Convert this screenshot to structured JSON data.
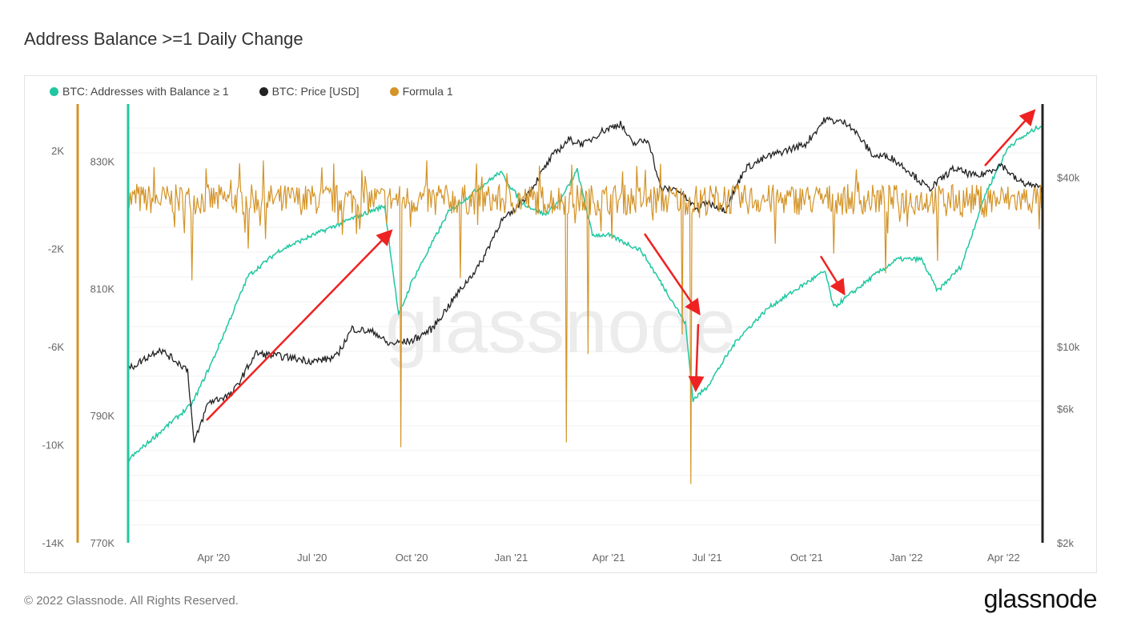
{
  "title": "Address Balance >=1 Daily Change",
  "footer": "© 2022 Glassnode. All Rights Reserved.",
  "logo": "glassnode",
  "watermark": "glassnode",
  "colors": {
    "addresses": "#1fc7a0",
    "price": "#222222",
    "formula": "#d49428",
    "annotation": "#ee2222"
  },
  "chart_data": {
    "type": "line",
    "title": "Address Balance >=1 Daily Change",
    "legend": [
      "BTC: Addresses with Balance ≥ 1",
      "BTC: Price [USD]",
      "Formula 1"
    ],
    "legend_position": "top-left",
    "x_range": [
      "2020-01-13",
      "2022-05-07"
    ],
    "x_ticks": [
      {
        "date": "2020-04-01",
        "label": "Apr '20"
      },
      {
        "date": "2020-07-01",
        "label": "Jul '20"
      },
      {
        "date": "2020-10-01",
        "label": "Oct '20"
      },
      {
        "date": "2021-01-01",
        "label": "Jan '21"
      },
      {
        "date": "2021-04-01",
        "label": "Apr '21"
      },
      {
        "date": "2021-07-01",
        "label": "Jul '21"
      },
      {
        "date": "2021-10-01",
        "label": "Oct '21"
      },
      {
        "date": "2022-01-01",
        "label": "Jan '22"
      },
      {
        "date": "2022-04-01",
        "label": "Apr '22"
      }
    ],
    "axes": {
      "formula": {
        "range": [
          -14000,
          3900
        ],
        "ticks": [
          {
            "v": 2000,
            "label": "2K"
          },
          {
            "v": -2000,
            "label": "-2K"
          },
          {
            "v": -6000,
            "label": "-6K"
          },
          {
            "v": -10000,
            "label": "-10K"
          },
          {
            "v": -14000,
            "label": "-14K"
          }
        ]
      },
      "addresses": {
        "range": [
          770000,
          839000
        ],
        "ticks": [
          {
            "v": 830000,
            "label": "830K"
          },
          {
            "v": 810000,
            "label": "810K"
          },
          {
            "v": 790000,
            "label": "790K"
          },
          {
            "v": 770000,
            "label": "770K"
          }
        ]
      },
      "price": {
        "scale": "log",
        "range": [
          2000,
          73000
        ],
        "ticks": [
          {
            "v": 40000,
            "label": "$40k"
          },
          {
            "v": 10000,
            "label": "$10k"
          },
          {
            "v": 6000,
            "label": "$6k"
          },
          {
            "v": 2000,
            "label": "$2k"
          }
        ]
      }
    },
    "grid": true,
    "series": [
      {
        "name": "BTC: Addresses with Balance ≥ 1",
        "axis": "addresses",
        "points": [
          [
            "2020-01-13",
            783000
          ],
          [
            "2020-03-12",
            791800
          ],
          [
            "2020-04-01",
            799000
          ],
          [
            "2020-05-03",
            812000
          ],
          [
            "2020-06-01",
            816000
          ],
          [
            "2020-07-02",
            818400
          ],
          [
            "2020-08-07",
            821000
          ],
          [
            "2020-09-06",
            823000
          ],
          [
            "2020-09-19",
            805700
          ],
          [
            "2020-10-01",
            811000
          ],
          [
            "2020-11-04",
            822000
          ],
          [
            "2020-12-04",
            826000
          ],
          [
            "2020-12-22",
            828300
          ],
          [
            "2021-01-11",
            823500
          ],
          [
            "2021-02-01",
            821600
          ],
          [
            "2021-02-16",
            824000
          ],
          [
            "2021-03-03",
            828600
          ],
          [
            "2021-03-17",
            818400
          ],
          [
            "2021-04-01",
            818400
          ],
          [
            "2021-05-01",
            816000
          ],
          [
            "2021-05-30",
            808000
          ],
          [
            "2021-06-11",
            804500
          ],
          [
            "2021-06-18",
            792500
          ],
          [
            "2021-06-30",
            794300
          ],
          [
            "2021-07-29",
            802000
          ],
          [
            "2021-08-27",
            807000
          ],
          [
            "2021-09-30",
            810800
          ],
          [
            "2021-10-18",
            812700
          ],
          [
            "2021-10-26",
            807000
          ],
          [
            "2021-12-02",
            812000
          ],
          [
            "2021-12-24",
            814600
          ],
          [
            "2022-01-15",
            814600
          ],
          [
            "2022-01-30",
            809600
          ],
          [
            "2022-02-21",
            813500
          ],
          [
            "2022-03-15",
            824800
          ],
          [
            "2022-04-06",
            832400
          ],
          [
            "2022-05-05",
            835600
          ]
        ]
      },
      {
        "name": "BTC: Price [USD]",
        "axis": "price",
        "points": [
          [
            "2020-01-13",
            8280
          ],
          [
            "2020-02-11",
            9790
          ],
          [
            "2020-03-08",
            8280
          ],
          [
            "2020-03-14",
            4514
          ],
          [
            "2020-03-27",
            6322
          ],
          [
            "2020-04-18",
            6760
          ],
          [
            "2020-05-10",
            9460
          ],
          [
            "2020-06-09",
            9150
          ],
          [
            "2020-07-02",
            8850
          ],
          [
            "2020-07-23",
            9150
          ],
          [
            "2020-08-07",
            11580
          ],
          [
            "2020-08-29",
            11200
          ],
          [
            "2020-09-09",
            10200
          ],
          [
            "2020-10-01",
            10470
          ],
          [
            "2020-10-20",
            11580
          ],
          [
            "2020-11-11",
            15170
          ],
          [
            "2020-12-04",
            19850
          ],
          [
            "2020-12-22",
            27780
          ],
          [
            "2021-01-01",
            29730
          ],
          [
            "2021-01-17",
            35160
          ],
          [
            "2021-02-08",
            47620
          ],
          [
            "2021-02-23",
            54460
          ],
          [
            "2021-03-10",
            52620
          ],
          [
            "2021-03-25",
            58230
          ],
          [
            "2021-04-12",
            62300
          ],
          [
            "2021-04-23",
            52620
          ],
          [
            "2021-05-08",
            54460
          ],
          [
            "2021-05-19",
            36350
          ],
          [
            "2021-06-03",
            36350
          ],
          [
            "2021-06-22",
            30730
          ],
          [
            "2021-06-30",
            32860
          ],
          [
            "2021-07-18",
            30730
          ],
          [
            "2021-08-05",
            43030
          ],
          [
            "2021-08-27",
            47620
          ],
          [
            "2021-09-30",
            52620
          ],
          [
            "2021-10-18",
            64420
          ],
          [
            "2021-11-09",
            62300
          ],
          [
            "2021-12-02",
            47620
          ],
          [
            "2021-12-16",
            47620
          ],
          [
            "2022-01-01",
            43030
          ],
          [
            "2022-01-22",
            36350
          ],
          [
            "2022-02-14",
            43030
          ],
          [
            "2022-03-08",
            40220
          ],
          [
            "2022-03-30",
            44490
          ],
          [
            "2022-04-14",
            38900
          ],
          [
            "2022-05-07",
            36350
          ]
        ]
      },
      {
        "name": "Formula 1",
        "axis": "formula",
        "baseline": 0,
        "noise_amplitude": 900,
        "spikes": [
          [
            "2020-03-12",
            -3300
          ],
          [
            "2020-05-03",
            -2000
          ],
          [
            "2020-09-21",
            -10100
          ],
          [
            "2020-11-15",
            -3200
          ],
          [
            "2021-02-21",
            -9900
          ],
          [
            "2021-03-13",
            -6300
          ],
          [
            "2021-06-08",
            -5500
          ],
          [
            "2021-06-16",
            -11600
          ],
          [
            "2021-09-02",
            -1800
          ],
          [
            "2021-10-26",
            -2200
          ],
          [
            "2021-12-13",
            -3000
          ],
          [
            "2022-01-30",
            -2500
          ]
        ]
      }
    ]
  }
}
